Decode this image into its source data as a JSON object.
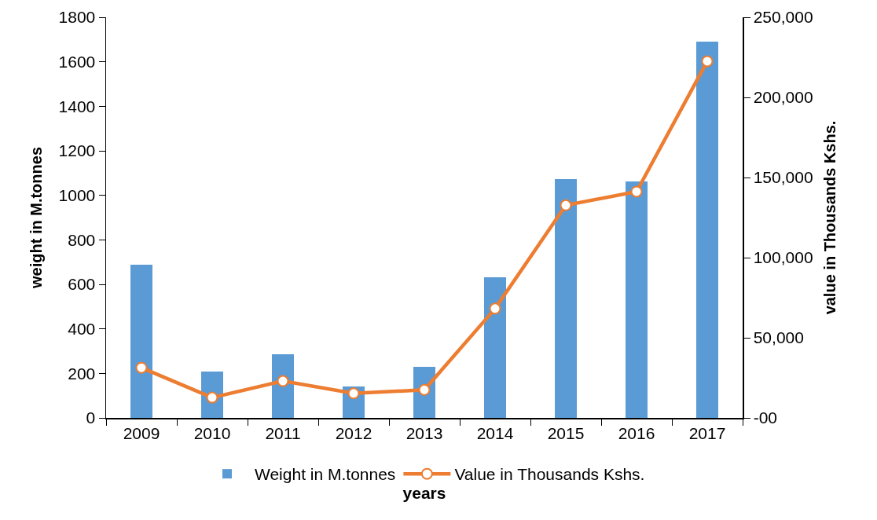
{
  "chart_data": {
    "type": "bar",
    "xlabel": "years",
    "ylabel": "weight in M.tonnes",
    "y2label": "value in Thousands Kshs.",
    "categories": [
      "2009",
      "2010",
      "2011",
      "2012",
      "2013",
      "2014",
      "2015",
      "2016",
      "2017"
    ],
    "series": [
      {
        "name": "Weight in M.tonnes",
        "color": "#5b9bd5",
        "values": [
          687,
          208,
          287,
          141,
          229,
          632,
          1072,
          1064,
          1691
        ]
      },
      {
        "name": "Value in Thousands Kshs.",
        "type": "line",
        "axis": "y2",
        "color": "#ed7d31",
        "marker": "circle",
        "values": [
          31300,
          12700,
          23000,
          15300,
          17500,
          68200,
          132700,
          141200,
          222600
        ]
      }
    ],
    "ylim": [
      0,
      1800
    ],
    "yticks": [
      0,
      200,
      400,
      600,
      800,
      1000,
      1200,
      1400,
      1600,
      1800
    ],
    "y2lim": [
      0,
      250000
    ],
    "y2ticks": [
      {
        "value": 0,
        "label": "-00"
      },
      {
        "value": 50000,
        "label": "50,000"
      },
      {
        "value": 100000,
        "label": "100,000"
      },
      {
        "value": 150000,
        "label": "150,000"
      },
      {
        "value": 200000,
        "label": "200,000"
      },
      {
        "value": 250000,
        "label": "250,000"
      }
    ],
    "grid": false,
    "legend": "bottom"
  }
}
